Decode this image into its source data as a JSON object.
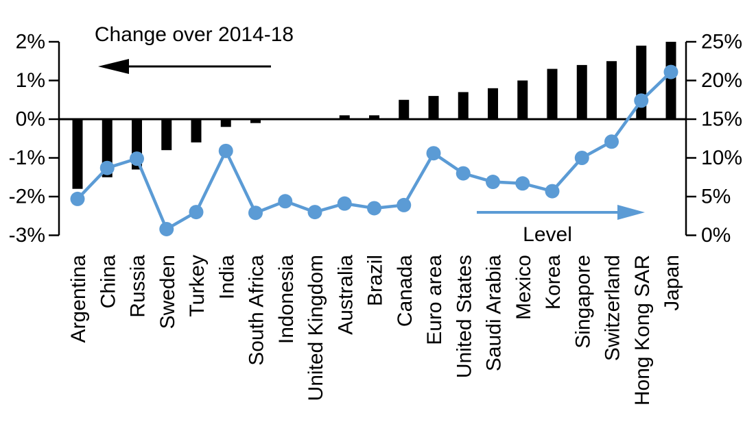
{
  "chart_data": {
    "type": "combo-bar-line",
    "title": "Change over 2014-18",
    "categories": [
      "Argentina",
      "China",
      "Russia",
      "Sweden",
      "Turkey",
      "India",
      "South Africa",
      "Indonesia",
      "United Kingdom",
      "Australia",
      "Brazil",
      "Canada",
      "Euro area",
      "United States",
      "Saudi Arabia",
      "Mexico",
      "Korea",
      "Singapore",
      "Switzerland",
      "Hong Kong SAR",
      "Japan"
    ],
    "series": [
      {
        "name": "Change over 2014-18",
        "type": "bar",
        "axis": "left",
        "values": [
          -1.8,
          -1.5,
          -1.3,
          -0.8,
          -0.6,
          -0.2,
          -0.1,
          0,
          0,
          0.1,
          0.1,
          0.5,
          0.6,
          0.7,
          0.8,
          1.0,
          1.3,
          1.4,
          1.5,
          1.9,
          2.0
        ]
      },
      {
        "name": "Level",
        "type": "line",
        "axis": "right",
        "values": [
          4.7,
          8.7,
          9.9,
          0.8,
          3.0,
          10.9,
          2.9,
          4.4,
          3.0,
          4.1,
          3.5,
          3.9,
          10.6,
          8.0,
          6.9,
          6.7,
          5.7,
          10.0,
          12.1,
          17.4,
          21.1
        ]
      }
    ],
    "left_axis": {
      "min": -3,
      "max": 2,
      "tick_values": [
        2,
        1,
        0,
        -1,
        -2,
        -3
      ],
      "tick_labels": [
        "2%",
        "1%",
        "0%",
        "-1%",
        "-2%",
        "-3%"
      ]
    },
    "right_axis": {
      "min": 0,
      "max": 25,
      "tick_values": [
        25,
        20,
        15,
        10,
        5,
        0
      ],
      "tick_labels": [
        "25%",
        "20%",
        "15%",
        "10%",
        "5%",
        "0%"
      ]
    },
    "annotations": {
      "bar_label": "Change over 2014-18",
      "bar_arrow_icon": "left-arrow-icon",
      "line_label": "Level",
      "line_arrow_icon": "right-arrow-icon"
    },
    "legend": "none",
    "grid": "off",
    "colors": {
      "bar": "#000000",
      "line": "#5B9BD5",
      "text": "#000000",
      "background": "#FFFFFF"
    }
  }
}
